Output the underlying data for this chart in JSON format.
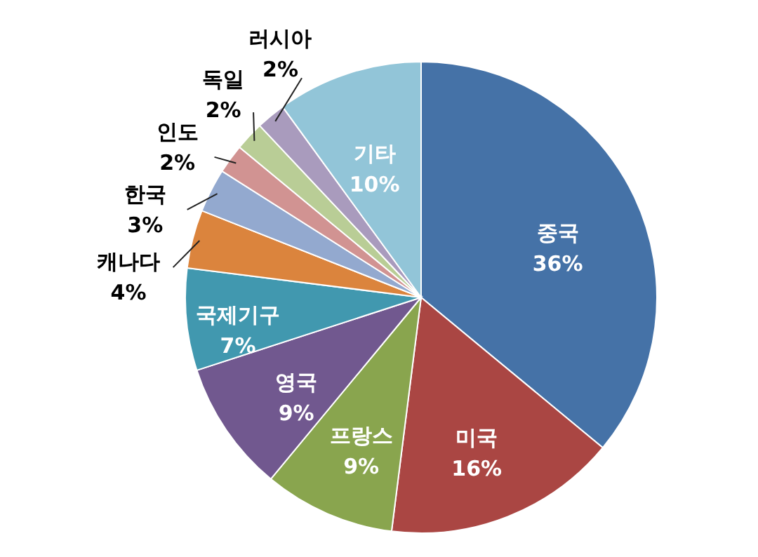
{
  "chart_data": {
    "type": "pie",
    "categories": [
      "중국",
      "미국",
      "프랑스",
      "영국",
      "국제기구",
      "캐나다",
      "한국",
      "인도",
      "독일",
      "러시아",
      "기타"
    ],
    "values": [
      36,
      16,
      9,
      9,
      7,
      4,
      3,
      2,
      2,
      2,
      10
    ],
    "value_labels": [
      "36%",
      "16%",
      "9%",
      "9%",
      "7%",
      "4%",
      "3%",
      "2%",
      "2%",
      "2%",
      "10%"
    ],
    "colors": [
      "#4572a7",
      "#aa4643",
      "#89a54e",
      "#71588f",
      "#4198af",
      "#db843d",
      "#93a9cf",
      "#d19392",
      "#b9cd96",
      "#a99bbd",
      "#92c5d8"
    ]
  }
}
